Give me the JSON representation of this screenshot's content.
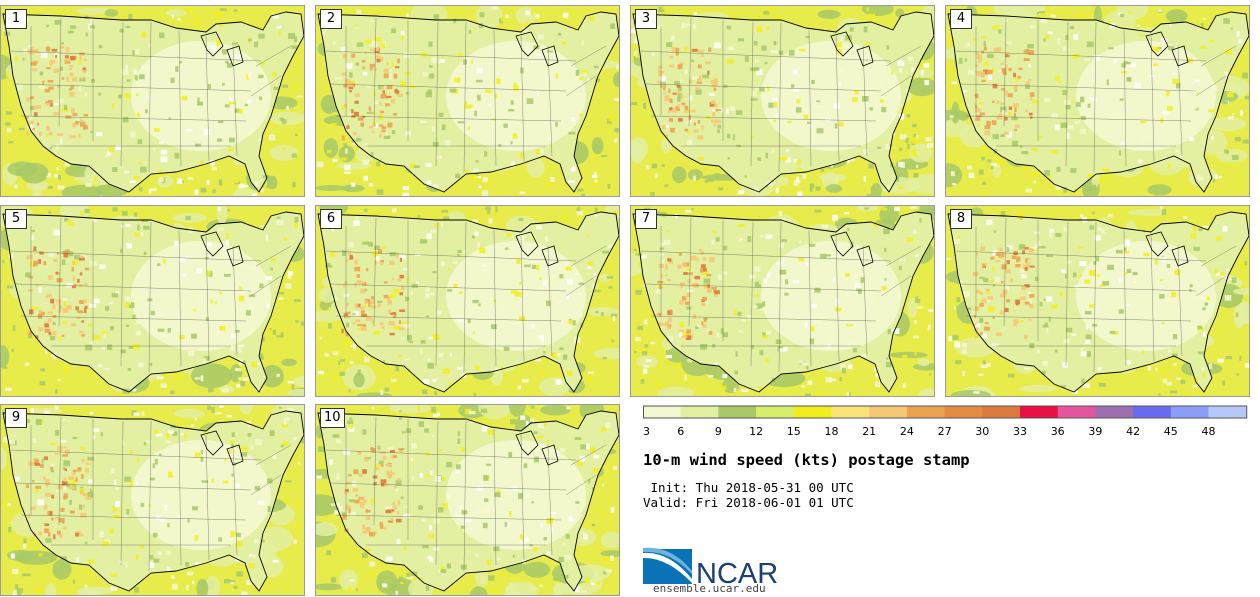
{
  "panels": [
    {
      "number": "1"
    },
    {
      "number": "2"
    },
    {
      "number": "3"
    },
    {
      "number": "4"
    },
    {
      "number": "5"
    },
    {
      "number": "6"
    },
    {
      "number": "7"
    },
    {
      "number": "8"
    },
    {
      "number": "9"
    },
    {
      "number": "10"
    }
  ],
  "legend": {
    "ticks": [
      "3",
      "6",
      "9",
      "12",
      "15",
      "18",
      "21",
      "24",
      "27",
      "30",
      "33",
      "36",
      "39",
      "42",
      "45",
      "48"
    ],
    "colors": [
      "#f4f8d0",
      "#e3f0a2",
      "#a7c968",
      "#d6ee6e",
      "#f2ee1e",
      "#fae477",
      "#f6c873",
      "#eba34f",
      "#e68c42",
      "#dc7a3e",
      "#ea0f44",
      "#e5559e",
      "#9e6fb0",
      "#6a6af0",
      "#8a9ef8",
      "#b4c8fa"
    ]
  },
  "title": "10-m wind speed (kts) postage stamp",
  "init": " Init: Thu 2018-05-31 00 UTC",
  "valid": "Valid: Fri 2018-06-01 01 UTC",
  "logo": {
    "text": "NCAR",
    "url_text": "ensemble.ucar.edu"
  },
  "palette": {
    "ocean": "#e8ec4a",
    "land": "#e3f0a2",
    "green": "#a7c968",
    "pale": "#f4f8d0",
    "orange": "#f6c873",
    "red": "#dc7a3e",
    "border": "#000000"
  }
}
